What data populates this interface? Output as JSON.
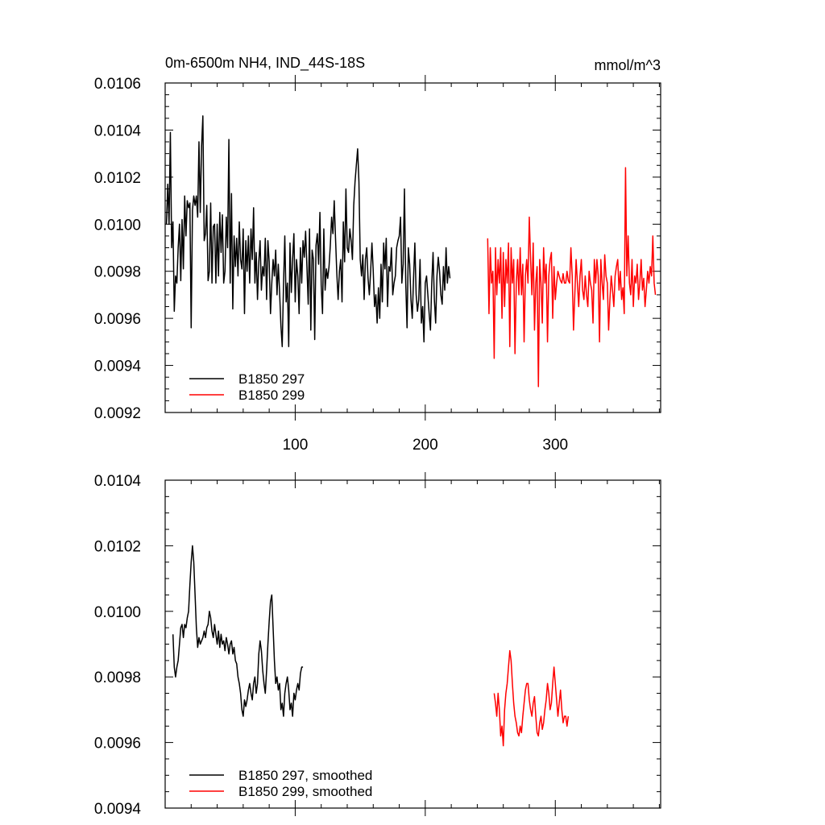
{
  "chart_data": [
    {
      "type": "line",
      "title": "0m-6500m NH4, IND_44S-18S",
      "units": "mmol/m^3",
      "xlim": [
        0,
        381
      ],
      "ylim": [
        0.0092,
        0.0106
      ],
      "x_ticks": [
        100,
        200,
        300
      ],
      "y_ticks": [
        "0.0092",
        "0.0094",
        "0.0096",
        "0.0098",
        "0.0100",
        "0.0102",
        "0.0104",
        "0.0106"
      ],
      "legend": "bottom-left",
      "series": [
        {
          "name": "B1850 297",
          "color": "#000000",
          "x_start": 1,
          "values": [
            0.01,
            0.01017,
            0.01,
            0.01039,
            0.0099,
            0.01001,
            0.00963,
            0.00978,
            0.00975,
            0.0099,
            0.01,
            0.00976,
            0.01002,
            0.00981,
            0.01012,
            0.00995,
            0.0101,
            0.01007,
            0.01009,
            0.00956,
            0.01006,
            0.01012,
            0.01008,
            0.01012,
            0.01003,
            0.01035,
            0.01005,
            0.01033,
            0.01046,
            0.00993,
            0.00996,
            0.01008,
            0.00976,
            0.0098,
            0.01009,
            0.00975,
            0.00999,
            0.01,
            0.00975,
            0.01,
            0.00978,
            0.01005,
            0.00988,
            0.01004,
            0.00975,
            0.0098,
            0.01003,
            0.0099,
            0.01036,
            0.00975,
            0.01013,
            0.00964,
            0.00995,
            0.00982,
            0.00994,
            0.00978,
            0.01001,
            0.00985,
            0.00981,
            0.00998,
            0.00962,
            0.00993,
            0.0098,
            0.00995,
            0.00975,
            0.00998,
            0.00985,
            0.01007,
            0.00975,
            0.00988,
            0.00968,
            0.00984,
            0.00993,
            0.00972,
            0.00982,
            0.00978,
            0.00994,
            0.00968,
            0.00993,
            0.00984,
            0.00962,
            0.00975,
            0.00985,
            0.00978,
            0.00989,
            0.0097,
            0.00983,
            0.00971,
            0.00957,
            0.00948,
            0.00974,
            0.00995,
            0.00967,
            0.00975,
            0.00948,
            0.00992,
            0.00971,
            0.00985,
            0.00996,
            0.00967,
            0.00985,
            0.00978,
            0.00962,
            0.0099,
            0.00975,
            0.00993,
            0.00986,
            0.00997,
            0.00982,
            0.00966,
            0.00998,
            0.00955,
            0.00989,
            0.00985,
            0.00951,
            0.00991,
            0.00996,
            0.00983,
            0.01005,
            0.00974,
            0.00962,
            0.00998,
            0.00972,
            0.00981,
            0.00977,
            0.00982,
            0.00991,
            0.01003,
            0.00996,
            0.0101,
            0.00994,
            0.00979,
            0.00968,
            0.0098,
            0.00985,
            0.00967,
            0.01001,
            0.00984,
            0.01015,
            0.0099,
            0.00988,
            0.00998,
            0.00993,
            0.00985,
            0.01008,
            0.01018,
            0.01025,
            0.01032,
            0.01018,
            0.00985,
            0.00978,
            0.00987,
            0.00968,
            0.00985,
            0.0099,
            0.00977,
            0.0097,
            0.0098,
            0.00992,
            0.0098,
            0.00965,
            0.0097,
            0.00958,
            0.00973,
            0.0096,
            0.00983,
            0.00967,
            0.00992,
            0.00981,
            0.00994,
            0.00965,
            0.00982,
            0.0098,
            0.0099,
            0.0097,
            0.00975,
            0.00978,
            0.0099,
            0.00993,
            0.00995,
            0.01003,
            0.00975,
            0.00983,
            0.01015,
            0.00975,
            0.00956,
            0.0099,
            0.00983,
            0.00968,
            0.0096,
            0.00977,
            0.00992,
            0.0097,
            0.00963,
            0.00968,
            0.00985,
            0.00958,
            0.00965,
            0.0095,
            0.00975,
            0.00978,
            0.0097,
            0.00962,
            0.00955,
            0.00975,
            0.00988,
            0.00968,
            0.00958,
            0.00978,
            0.00986,
            0.0098,
            0.0097,
            0.00966,
            0.00982,
            0.00972,
            0.0099,
            0.00975,
            0.00982,
            0.00977
          ]
        },
        {
          "name": "B1850 299",
          "color": "#ff0000",
          "x_start": 248,
          "values": [
            0.00994,
            0.00962,
            0.0099,
            0.00975,
            0.0098,
            0.00943,
            0.0099,
            0.0097,
            0.00985,
            0.00975,
            0.0099,
            0.0096,
            0.00988,
            0.00965,
            0.00985,
            0.00975,
            0.00992,
            0.00948,
            0.0099,
            0.00975,
            0.00985,
            0.00945,
            0.00975,
            0.00985,
            0.0097,
            0.0099,
            0.0097,
            0.00983,
            0.0095,
            0.00978,
            0.00985,
            0.00975,
            0.01003,
            0.00985,
            0.0097,
            0.00992,
            0.00955,
            0.00975,
            0.00982,
            0.00931,
            0.00985,
            0.00975,
            0.00958,
            0.0099,
            0.00975,
            0.00983,
            0.0095,
            0.00978,
            0.00985,
            0.00988,
            0.0096,
            0.00982,
            0.00968,
            0.00975,
            0.0098,
            0.00978,
            0.00976,
            0.00975,
            0.00979,
            0.00975,
            0.00975,
            0.0098,
            0.00976,
            0.00975,
            0.0099,
            0.00978,
            0.00955,
            0.0097,
            0.00985,
            0.00975,
            0.00965,
            0.00978,
            0.00985,
            0.00972,
            0.00968,
            0.00978,
            0.0097,
            0.00965,
            0.0098,
            0.00975,
            0.00972,
            0.00958,
            0.00985,
            0.00975,
            0.00985,
            0.00978,
            0.0095,
            0.00985,
            0.00975,
            0.00968,
            0.00987,
            0.00978,
            0.00975,
            0.00955,
            0.00968,
            0.00978,
            0.00972,
            0.00965,
            0.00978,
            0.00982,
            0.00985,
            0.00972,
            0.0098,
            0.00968,
            0.00973,
            0.00962,
            0.01024,
            0.00978,
            0.00995,
            0.00975,
            0.0097,
            0.00985,
            0.00965,
            0.00978,
            0.00975,
            0.00983,
            0.00968,
            0.00975,
            0.00985,
            0.00972,
            0.00977,
            0.00965,
            0.00972,
            0.0098,
            0.00975,
            0.00982,
            0.00978,
            0.00995,
            0.00975,
            0.0097
          ]
        }
      ]
    },
    {
      "type": "line",
      "title": "",
      "xlim": [
        0,
        381
      ],
      "ylim": [
        0.0094,
        0.0104
      ],
      "y_ticks": [
        "0.0094",
        "0.0096",
        "0.0098",
        "0.0100",
        "0.0102",
        "0.0104"
      ],
      "legend": "bottom-left",
      "series": [
        {
          "name": "B1850 297, smoothed",
          "color": "#000000",
          "x_start": 6,
          "values": [
            0.00993,
            0.00983,
            0.0098,
            0.00983,
            0.00985,
            0.0099,
            0.00995,
            0.00996,
            0.00992,
            0.00996,
            0.00995,
            0.00998,
            0.01,
            0.01008,
            0.01015,
            0.0102,
            0.01015,
            0.01005,
            0.00995,
            0.00989,
            0.00992,
            0.0099,
            0.00991,
            0.00992,
            0.00994,
            0.00992,
            0.00995,
            0.00996,
            0.01,
            0.00998,
            0.00994,
            0.00992,
            0.00996,
            0.00993,
            0.0099,
            0.00994,
            0.00989,
            0.00993,
            0.0099,
            0.00991,
            0.00988,
            0.00992,
            0.0099,
            0.00987,
            0.0099,
            0.00991,
            0.00987,
            0.00989,
            0.00985,
            0.00984,
            0.0098,
            0.00978,
            0.00975,
            0.0097,
            0.00968,
            0.00973,
            0.00971,
            0.00973,
            0.00976,
            0.00978,
            0.00975,
            0.00973,
            0.00978,
            0.0098,
            0.00975,
            0.00978,
            0.00987,
            0.00991,
            0.00988,
            0.00982,
            0.00978,
            0.00975,
            0.00982,
            0.0099,
            0.00997,
            0.01003,
            0.01005,
            0.00995,
            0.00985,
            0.00978,
            0.0098,
            0.00976,
            0.00978,
            0.0097,
            0.00972,
            0.00968,
            0.00975,
            0.00978,
            0.0098,
            0.00976,
            0.0097,
            0.00972,
            0.00968,
            0.00975,
            0.00973,
            0.00976,
            0.00978,
            0.00976,
            0.00981,
            0.00983,
            0.00983
          ]
        },
        {
          "name": "B1850 299, smoothed",
          "color": "#ff0000",
          "x_start": 253,
          "values": [
            0.00975,
            0.00972,
            0.00968,
            0.00975,
            0.0097,
            0.00962,
            0.00965,
            0.00959,
            0.0097,
            0.00975,
            0.00978,
            0.00983,
            0.00988,
            0.00985,
            0.00978,
            0.00972,
            0.00968,
            0.00966,
            0.00963,
            0.00962,
            0.00965,
            0.00963,
            0.00968,
            0.00972,
            0.00976,
            0.00978,
            0.00978,
            0.00973,
            0.0097,
            0.00968,
            0.00972,
            0.00974,
            0.00968,
            0.00963,
            0.00962,
            0.00966,
            0.00968,
            0.00964,
            0.00966,
            0.0097,
            0.00973,
            0.00978,
            0.00975,
            0.0097,
            0.00972,
            0.00978,
            0.00983,
            0.00978,
            0.00973,
            0.00968,
            0.00972,
            0.00976,
            0.0097,
            0.00966,
            0.00968,
            0.00968,
            0.00965,
            0.00968
          ]
        }
      ]
    }
  ]
}
